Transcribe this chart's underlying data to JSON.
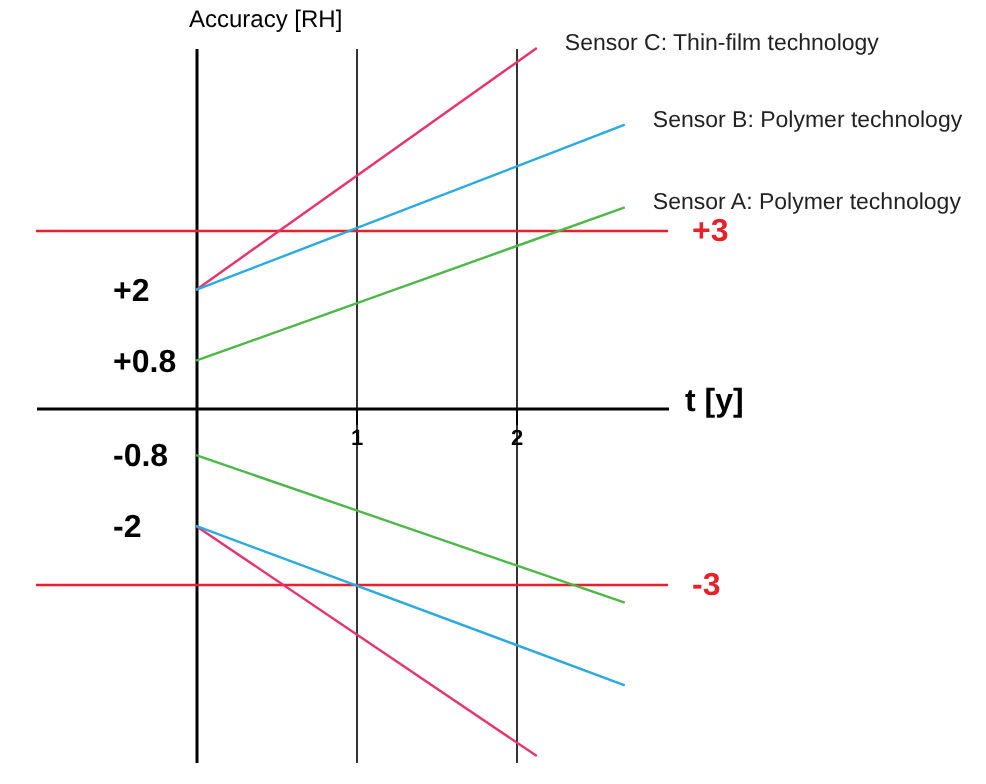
{
  "chart_data": {
    "type": "line",
    "xlabel": "t [y]",
    "ylabel": "Accuracy [RH]",
    "xlim": [
      -1,
      2.95
    ],
    "ylim": [
      -6,
      6.1
    ],
    "xticks": [
      1,
      2
    ],
    "yticks": [
      {
        "value": 2,
        "label": "+2"
      },
      {
        "value": 0.8,
        "label": "+0.8"
      },
      {
        "value": -0.8,
        "label": "-0.8"
      },
      {
        "value": -2,
        "label": "-2"
      }
    ],
    "grid": "x",
    "marker": "none",
    "line_style": "solid",
    "series": [
      {
        "name": "Sensor C: Thin-film technology",
        "color": "#e8336d",
        "x": [
          0,
          2.13
        ],
        "values": [
          2,
          6.1
        ]
      },
      {
        "color": "#e8336d",
        "x": [
          0,
          2.13
        ],
        "values": [
          -2,
          -5.9
        ]
      },
      {
        "name": "Sensor B: Polymer technology",
        "color": "#29aae2",
        "x": [
          0,
          2.68
        ],
        "values": [
          2,
          4.8
        ]
      },
      {
        "color": "#29aae2",
        "x": [
          0,
          2.68
        ],
        "values": [
          -2,
          -4.7
        ]
      },
      {
        "name": "Sensor A: Polymer technology",
        "color": "#4cb848",
        "x": [
          0,
          2.68
        ],
        "values": [
          0.8,
          3.4
        ]
      },
      {
        "color": "#4cb848",
        "x": [
          0,
          2.68
        ],
        "values": [
          -0.8,
          -3.3
        ]
      }
    ],
    "ref_lines": [
      {
        "axis": "y",
        "value": 3,
        "label": "+3",
        "color": "#e8202a",
        "line_style": "solid"
      },
      {
        "axis": "y",
        "value": -3,
        "label": "-3",
        "color": "#e8202a",
        "line_style": "solid"
      }
    ]
  }
}
